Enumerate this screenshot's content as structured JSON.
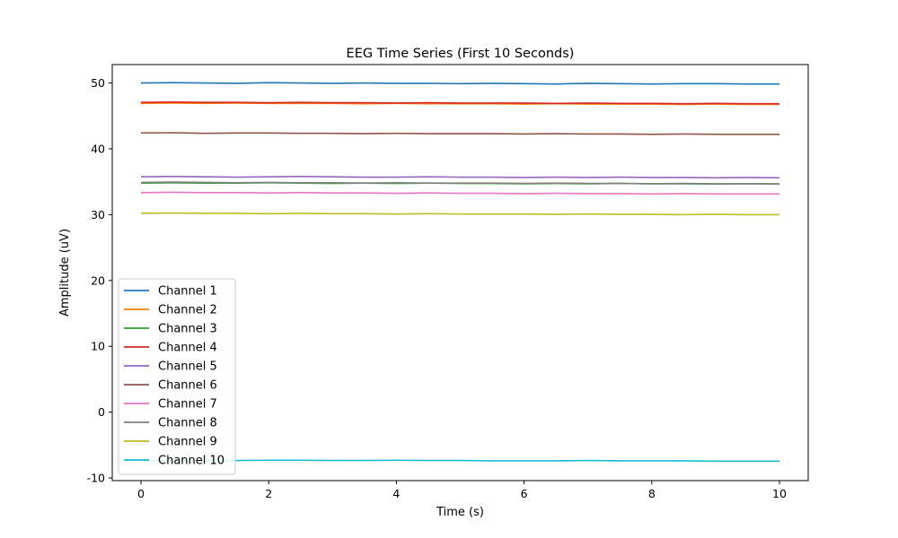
{
  "chart_data": {
    "type": "line",
    "title": "EEG Time Series (First 10 Seconds)",
    "xlabel": "Time (s)",
    "ylabel": "Amplitude (uV)",
    "xlim": [
      -0.45,
      10.45
    ],
    "ylim": [
      -10.4,
      52.8
    ],
    "xticks": [
      0,
      2,
      4,
      6,
      8,
      10
    ],
    "yticks": [
      -10,
      0,
      10,
      20,
      30,
      40,
      50
    ],
    "x": [
      0,
      0.5,
      1,
      1.5,
      2,
      2.5,
      3,
      3.5,
      4,
      4.5,
      5,
      5.5,
      6,
      6.5,
      7,
      7.5,
      8,
      8.5,
      9,
      9.5,
      10
    ],
    "legend_location": "lower-left",
    "series": [
      {
        "name": "Channel 1",
        "color": "#1f77b4",
        "values": [
          50.0,
          50.05,
          50.0,
          49.95,
          50.05,
          50.0,
          49.95,
          50.0,
          49.95,
          49.95,
          49.9,
          49.95,
          49.9,
          49.85,
          49.95,
          49.9,
          49.85,
          49.9,
          49.9,
          49.85,
          49.85
        ]
      },
      {
        "name": "Channel 2",
        "color": "#ff7f0e",
        "values": [
          46.9,
          46.95,
          46.9,
          46.95,
          46.9,
          46.9,
          46.9,
          46.85,
          46.9,
          46.85,
          46.85,
          46.85,
          46.8,
          46.85,
          46.8,
          46.8,
          46.8,
          46.75,
          46.8,
          46.75,
          46.75
        ]
      },
      {
        "name": "Channel 3",
        "color": "#2ca02c",
        "values": [
          34.8,
          34.85,
          34.8,
          34.8,
          34.85,
          34.8,
          34.75,
          34.8,
          34.75,
          34.8,
          34.75,
          34.75,
          34.7,
          34.75,
          34.7,
          34.75,
          34.7,
          34.7,
          34.65,
          34.7,
          34.65
        ]
      },
      {
        "name": "Channel 4",
        "color": "#d62728",
        "values": [
          47.05,
          47.1,
          47.05,
          47.05,
          47.0,
          47.05,
          47.0,
          47.0,
          46.95,
          47.0,
          46.95,
          46.95,
          46.95,
          46.9,
          46.95,
          46.9,
          46.9,
          46.85,
          46.9,
          46.85,
          46.85
        ]
      },
      {
        "name": "Channel 5",
        "color": "#9467bd",
        "values": [
          35.75,
          35.8,
          35.75,
          35.7,
          35.75,
          35.8,
          35.75,
          35.7,
          35.7,
          35.75,
          35.7,
          35.7,
          35.65,
          35.7,
          35.65,
          35.7,
          35.65,
          35.65,
          35.6,
          35.65,
          35.6
        ]
      },
      {
        "name": "Channel 6",
        "color": "#8c564b",
        "values": [
          42.4,
          42.45,
          42.35,
          42.4,
          42.4,
          42.35,
          42.35,
          42.3,
          42.35,
          42.3,
          42.3,
          42.3,
          42.25,
          42.3,
          42.25,
          42.25,
          42.2,
          42.25,
          42.2,
          42.2,
          42.2
        ]
      },
      {
        "name": "Channel 7",
        "color": "#e377c2",
        "values": [
          33.35,
          33.4,
          33.35,
          33.35,
          33.3,
          33.35,
          33.3,
          33.3,
          33.25,
          33.3,
          33.25,
          33.25,
          33.2,
          33.25,
          33.2,
          33.2,
          33.15,
          33.2,
          33.15,
          33.15,
          33.15
        ]
      },
      {
        "name": "Channel 8",
        "color": "#7f7f7f",
        "values": [
          34.9,
          34.95,
          34.9,
          34.85,
          34.9,
          34.85,
          34.85,
          34.8,
          34.85,
          34.8,
          34.8,
          34.8,
          34.75,
          34.8,
          34.75,
          34.75,
          34.7,
          34.75,
          34.7,
          34.7,
          34.7
        ]
      },
      {
        "name": "Channel 9",
        "color": "#bcbd22",
        "values": [
          30.2,
          30.25,
          30.2,
          30.2,
          30.15,
          30.2,
          30.15,
          30.15,
          30.1,
          30.15,
          30.1,
          30.1,
          30.1,
          30.05,
          30.1,
          30.05,
          30.05,
          30.0,
          30.05,
          30.0,
          30.0
        ]
      },
      {
        "name": "Channel 10",
        "color": "#17becf",
        "values": [
          -7.4,
          -7.35,
          -7.4,
          -7.35,
          -7.3,
          -7.3,
          -7.35,
          -7.35,
          -7.3,
          -7.35,
          -7.35,
          -7.4,
          -7.4,
          -7.4,
          -7.35,
          -7.4,
          -7.4,
          -7.4,
          -7.45,
          -7.45,
          -7.45
        ]
      }
    ]
  }
}
